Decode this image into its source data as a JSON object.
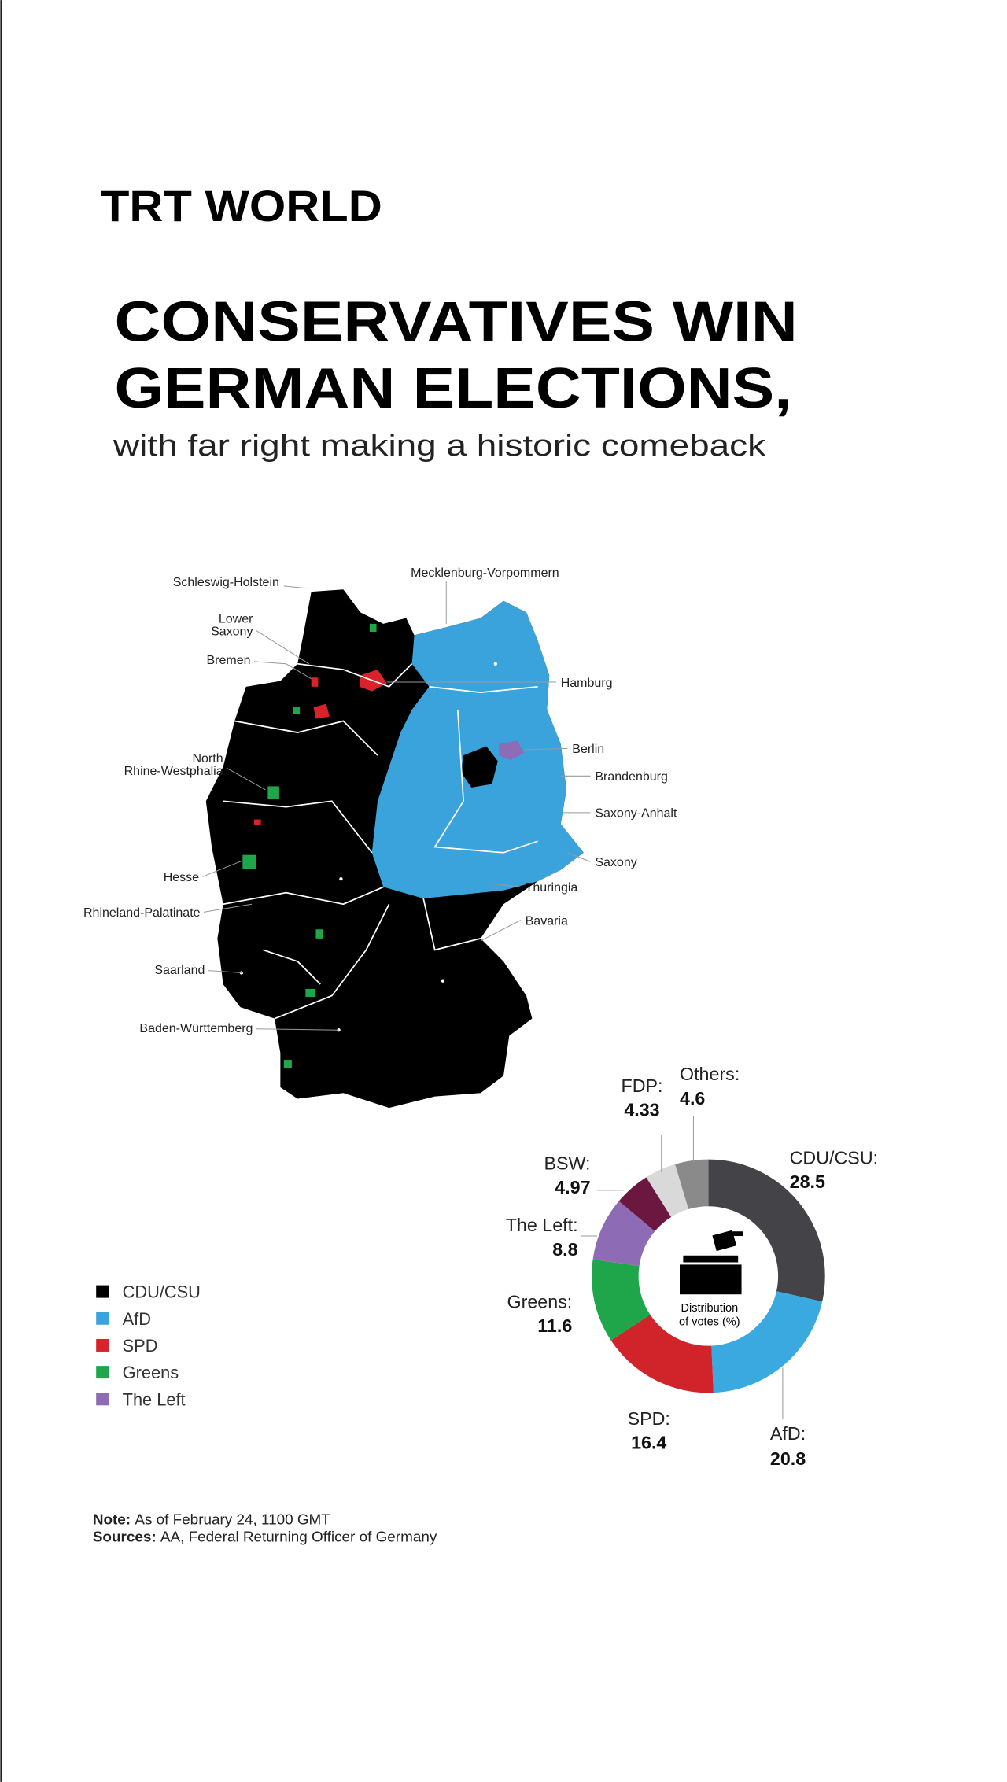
{
  "header": {
    "logo": "TRT WORLD",
    "title_lines": [
      "CONSERVATIVES WIN",
      "GERMAN ELECTIONS,"
    ],
    "subtitle": "with far right making a historic comeback"
  },
  "map": {
    "state_labels": [
      [
        "Schleswig-Holstein"
      ],
      [
        "Lower",
        "Saxony"
      ],
      [
        "Bremen"
      ],
      [
        "North",
        "Rhine-Westphalia"
      ],
      [
        "Hesse"
      ],
      [
        "Rhineland-Palatinate"
      ],
      [
        "Saarland"
      ],
      [
        "Baden-Württemberg"
      ],
      [
        "Mecklenburg-Vorpommern"
      ],
      [
        "Hamburg"
      ],
      [
        "Berlin"
      ],
      [
        "Brandenburg"
      ],
      [
        "Saxony-Anhalt"
      ],
      [
        "Saxony"
      ],
      [
        "Thuringia"
      ],
      [
        "Bavaria"
      ]
    ],
    "legend": [
      {
        "name": "CDU/CSU",
        "color": "#000000"
      },
      {
        "name": "AfD",
        "color": "#3aa3dc"
      },
      {
        "name": "SPD",
        "color": "#d8232a"
      },
      {
        "name": "Greens",
        "color": "#1fa64b"
      },
      {
        "name": "The Left",
        "color": "#8e6bb5"
      }
    ]
  },
  "chart_data": {
    "type": "donut",
    "center_label": [
      "Distribution",
      "of votes (%)"
    ],
    "categories": [
      "CDU/CSU:",
      "AfD:",
      "SPD:",
      "Greens:",
      "The Left:",
      "BSW:",
      "FDP:",
      "Others:"
    ],
    "values": [
      28.5,
      20.8,
      16.4,
      11.6,
      8.8,
      4.97,
      4.33,
      4.6
    ],
    "colors": [
      "#444448",
      "#3aa9e0",
      "#d0232a",
      "#1fa64b",
      "#8e6bb5",
      "#6b1740",
      "#d9d9d9",
      "#8a8a8a"
    ]
  },
  "footer": {
    "note_label": "Note:",
    "note": "As of February 24, 1100 GMT",
    "sources_label": "Sources:",
    "sources": "AA, Federal Returning Officer of Germany"
  }
}
